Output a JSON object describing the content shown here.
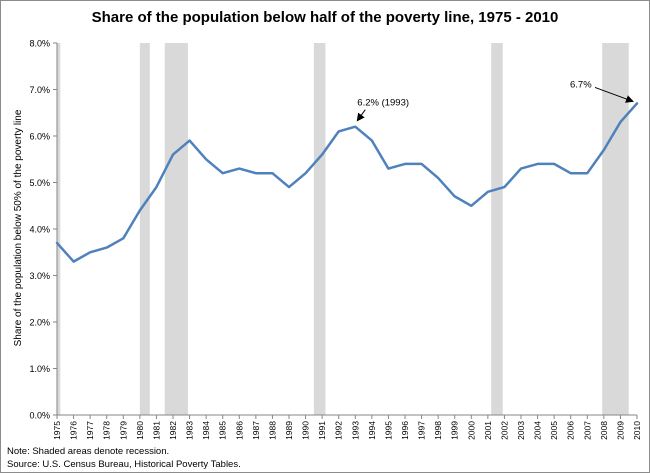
{
  "chart_data": {
    "type": "line",
    "title": "Share of the population  below half of the poverty line, 1975 - 2010",
    "ylabel": "Share of the population below 50% of the poverty line",
    "xlabel": "",
    "ylim": [
      0,
      8
    ],
    "yticks": [
      "0.0%",
      "1.0%",
      "2.0%",
      "3.0%",
      "4.0%",
      "5.0%",
      "6.0%",
      "7.0%",
      "8.0%"
    ],
    "grid": false,
    "legend": "none",
    "line_color": "#4f81bd",
    "recession_color": "#d9d9d9",
    "x": [
      1975,
      1976,
      1977,
      1978,
      1979,
      1980,
      1981,
      1982,
      1983,
      1984,
      1985,
      1986,
      1987,
      1988,
      1989,
      1990,
      1991,
      1992,
      1993,
      1994,
      1995,
      1996,
      1997,
      1998,
      1999,
      2000,
      2001,
      2002,
      2003,
      2004,
      2005,
      2006,
      2007,
      2008,
      2009,
      2010
    ],
    "series": [
      {
        "values": [
          3.7,
          3.3,
          3.5,
          3.6,
          3.8,
          4.4,
          4.9,
          5.6,
          5.9,
          5.5,
          5.2,
          5.3,
          5.2,
          5.2,
          4.9,
          5.2,
          5.6,
          6.1,
          6.2,
          5.9,
          5.3,
          5.4,
          5.4,
          5.1,
          4.7,
          4.5,
          4.8,
          4.9,
          5.3,
          5.4,
          5.4,
          5.2,
          5.2,
          5.7,
          6.3,
          6.7
        ]
      }
    ],
    "recessions": [
      [
        1975,
        1975.2
      ],
      [
        1980,
        1980.6
      ],
      [
        1981.5,
        1982.9
      ],
      [
        1990.5,
        1991.2
      ],
      [
        2001.2,
        2001.9
      ],
      [
        2007.9,
        2009.5
      ]
    ],
    "annotations": [
      {
        "text": "6.2% (1993)",
        "x": 1993,
        "y": 6.2
      },
      {
        "text": "6.7%",
        "x": 2010,
        "y": 6.7
      }
    ]
  },
  "notes": {
    "line1": "Note: Shaded areas denote recession.",
    "line2": "Source: U.S. Census Bureau, Historical Poverty Tables."
  }
}
